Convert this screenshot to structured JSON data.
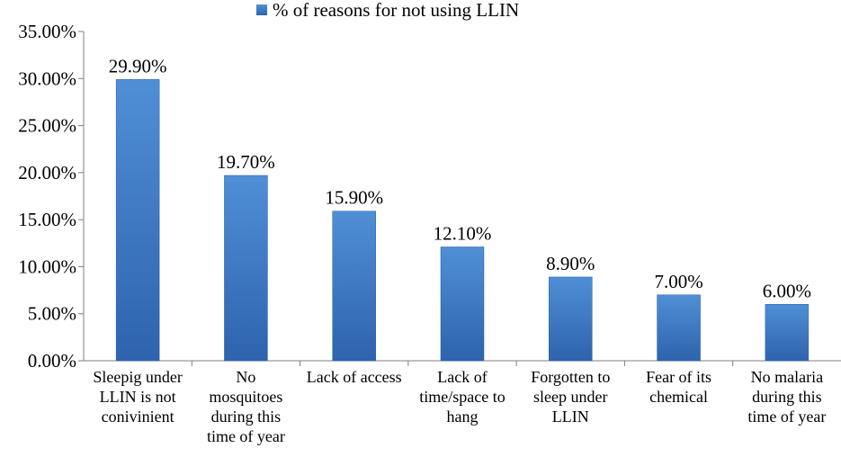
{
  "chart_data": {
    "type": "bar",
    "categories": [
      [
        "Sleepig under",
        "LLIN is not",
        "conivinient"
      ],
      [
        "No",
        "mosquitoes",
        "during this",
        "time of year"
      ],
      [
        "Lack of access"
      ],
      [
        "Lack of",
        "time/space to",
        "hang"
      ],
      [
        "Forgotten to",
        "sleep under",
        "LLIN"
      ],
      [
        "Fear of its",
        "chemical"
      ],
      [
        "No malaria",
        "during this",
        "time of year"
      ]
    ],
    "series": [
      {
        "name": "% of reasons for not using LLIN",
        "values": [
          29.9,
          19.7,
          15.9,
          12.1,
          8.9,
          7.0,
          6.0
        ],
        "labels": [
          "29.90%",
          "19.70%",
          "15.90%",
          "12.10%",
          "8.90%",
          "7.00%",
          "6.00%"
        ]
      }
    ],
    "ylim": [
      0,
      35
    ],
    "yticks": [
      "0.00%",
      "5.00%",
      "10.00%",
      "15.00%",
      "20.00%",
      "25.00%",
      "30.00%",
      "35.00%"
    ],
    "legend_position": "top",
    "grid": false,
    "colors": {
      "bar_top": "#4f8fd6",
      "bar_bottom": "#2e63ad",
      "bar_edge": "#2b5fa8",
      "axis": "#7f7f7f"
    }
  }
}
